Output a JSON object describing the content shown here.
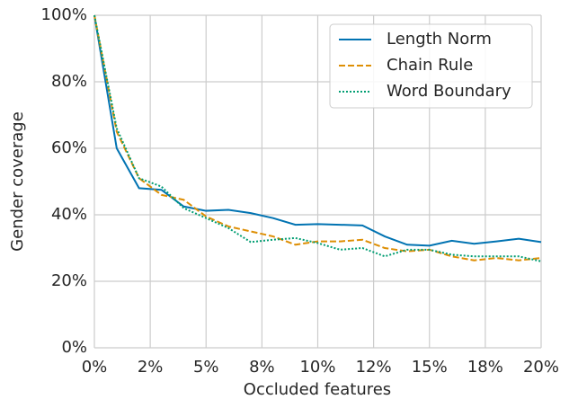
{
  "chart_data": {
    "type": "line",
    "xlabel": "Occluded features",
    "ylabel": "Gender coverage",
    "x": [
      0,
      1,
      2,
      3,
      4,
      5,
      6,
      7,
      8,
      9,
      10,
      11,
      12,
      13,
      14,
      15,
      16,
      17,
      18,
      19,
      20
    ],
    "series": [
      {
        "name": "Length Norm",
        "color": "#0173b2",
        "dash": "solid",
        "values": [
          100,
          60,
          48,
          47.5,
          42.5,
          41.2,
          41.5,
          40.5,
          39,
          37,
          37.2,
          37,
          36.8,
          33.5,
          31,
          30.7,
          32.2,
          31.3,
          32,
          32.8,
          31.8
        ]
      },
      {
        "name": "Chain Rule",
        "color": "#de8f05",
        "dash": "dashed",
        "values": [
          100,
          65,
          51,
          46,
          44.5,
          39.5,
          36.5,
          35,
          33.5,
          31,
          32,
          32,
          32.5,
          30,
          29,
          29.5,
          27.5,
          26.3,
          27,
          26.3,
          27
        ]
      },
      {
        "name": "Word Boundary",
        "color": "#029e73",
        "dash": "dotted",
        "values": [
          100,
          66,
          51,
          48.5,
          42,
          39,
          36,
          31.8,
          32.5,
          33,
          31.5,
          29.5,
          30,
          27.5,
          29.5,
          29.5,
          28,
          27.5,
          27.5,
          27.5,
          26
        ]
      }
    ],
    "xlim": [
      0,
      20
    ],
    "xticks": [
      {
        "value": 0,
        "label": "0%"
      },
      {
        "value": 2.5,
        "label": "2%"
      },
      {
        "value": 5,
        "label": "5%"
      },
      {
        "value": 7.5,
        "label": "8%"
      },
      {
        "value": 10,
        "label": "10%"
      },
      {
        "value": 12.5,
        "label": "12%"
      },
      {
        "value": 15,
        "label": "15%"
      },
      {
        "value": 17.5,
        "label": "18%"
      },
      {
        "value": 20,
        "label": "20%"
      }
    ],
    "ylim": [
      0,
      100
    ],
    "yticks": [
      {
        "value": 0,
        "label": "0%"
      },
      {
        "value": 20,
        "label": "20%"
      },
      {
        "value": 40,
        "label": "40%"
      },
      {
        "value": 60,
        "label": "60%"
      },
      {
        "value": 80,
        "label": "80%"
      },
      {
        "value": 100,
        "label": "100%"
      }
    ],
    "grid": true,
    "legend": "upper right"
  }
}
